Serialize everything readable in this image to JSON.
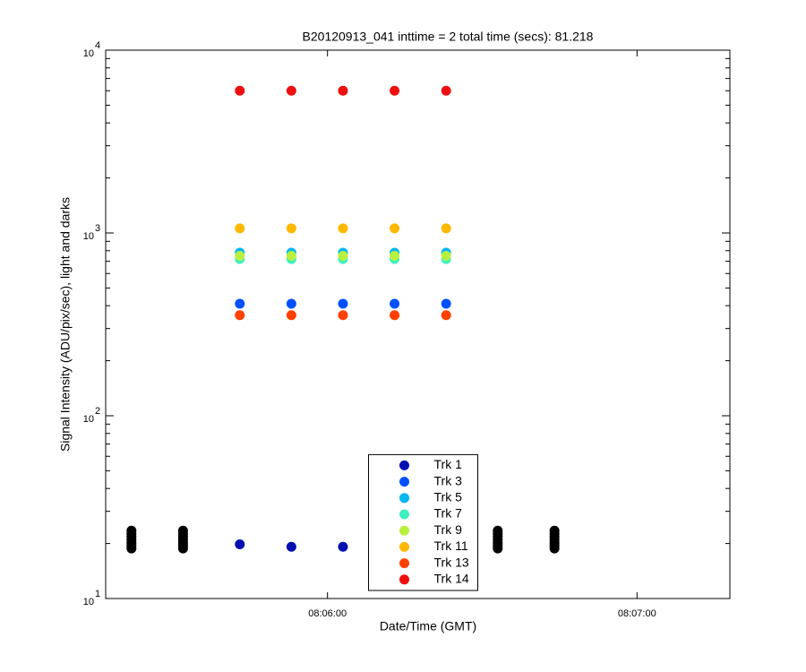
{
  "chart_data": {
    "type": "scatter",
    "title": "B20120913_041 inttime = 2 total time (secs): 81.218",
    "x_label": "Date/Time (GMT)",
    "y_label": "Signal Intensity (ADU/pix/sec), light and darks",
    "y_log": true,
    "xlim": [
      "08:05:17",
      "08:07:18"
    ],
    "xticks": [
      "08:06:00",
      "08:07:00"
    ],
    "ylim": [
      10,
      10000
    ],
    "yticks": [
      {
        "value": 10,
        "label": "10",
        "exponent": "1"
      },
      {
        "value": 100,
        "label": "10",
        "exponent": "2"
      },
      {
        "value": 1000,
        "label": "10",
        "exponent": "3"
      },
      {
        "value": 10000,
        "label": "10",
        "exponent": "4"
      }
    ],
    "minor_yticks": [
      20,
      30,
      40,
      50,
      60,
      70,
      80,
      90,
      200,
      300,
      400,
      500,
      600,
      700,
      800,
      900,
      2000,
      3000,
      4000,
      5000,
      6000,
      7000,
      8000,
      9000
    ],
    "legend": "south",
    "series": [
      {
        "color": "#000000",
        "legend": false,
        "x": [
          "08:05:22",
          "08:05:22",
          "08:05:22",
          "08:05:22",
          "08:05:22",
          "08:05:22",
          "08:05:22",
          "08:05:32",
          "08:05:32",
          "08:05:32",
          "08:05:32",
          "08:05:32",
          "08:05:32",
          "08:05:32",
          "08:06:33",
          "08:06:33",
          "08:06:33",
          "08:06:33",
          "08:06:33",
          "08:06:33",
          "08:06:33",
          "08:06:44",
          "08:06:44",
          "08:06:44",
          "08:06:44",
          "08:06:44",
          "08:06:44",
          "08:06:44"
        ],
        "values": [
          18.8,
          19.5,
          20.2,
          21,
          21.8,
          22.6,
          23.5,
          18.8,
          19.5,
          20.2,
          21,
          21.8,
          22.6,
          23.5,
          18.8,
          19.5,
          20.2,
          21,
          21.8,
          22.6,
          23.5,
          18.8,
          19.5,
          20.2,
          21,
          21.8,
          22.6,
          23.5
        ]
      },
      {
        "name": "Trk 1",
        "color": "#0010b0",
        "x": [
          "08:05:43",
          "08:05:53",
          "08:06:03"
        ],
        "values": [
          19.8,
          19.2,
          19.2
        ]
      },
      {
        "name": "Trk 3",
        "color": "#0050ff",
        "x": [
          "08:05:43",
          "08:05:53",
          "08:06:03",
          "08:06:13",
          "08:06:23"
        ],
        "values": [
          410,
          410,
          410,
          410,
          410
        ]
      },
      {
        "name": "Trk 5",
        "color": "#00b8f0",
        "x": [
          "08:05:43",
          "08:05:53",
          "08:06:03",
          "08:06:13",
          "08:06:23"
        ],
        "values": [
          780,
          780,
          780,
          780,
          780
        ]
      },
      {
        "name": "Trk 7",
        "color": "#40f0c0",
        "x": [
          "08:05:43",
          "08:05:53",
          "08:06:03",
          "08:06:13",
          "08:06:23"
        ],
        "values": [
          720,
          720,
          720,
          720,
          720
        ]
      },
      {
        "name": "Trk 9",
        "color": "#b8f040",
        "x": [
          "08:05:43",
          "08:05:53",
          "08:06:03",
          "08:06:13",
          "08:06:23"
        ],
        "values": [
          750,
          750,
          750,
          750,
          750
        ]
      },
      {
        "name": "Trk 11",
        "color": "#ffb800",
        "x": [
          "08:05:43",
          "08:05:53",
          "08:06:03",
          "08:06:13",
          "08:06:23"
        ],
        "values": [
          1060,
          1060,
          1060,
          1060,
          1060
        ]
      },
      {
        "name": "Trk 13",
        "color": "#ff4000",
        "x": [
          "08:05:43",
          "08:05:53",
          "08:06:03",
          "08:06:13",
          "08:06:23"
        ],
        "values": [
          355,
          355,
          355,
          355,
          355
        ]
      },
      {
        "name": "Trk 14",
        "color": "#ee1010",
        "x": [
          "08:05:43",
          "08:05:53",
          "08:06:03",
          "08:06:13",
          "08:06:23"
        ],
        "values": [
          6000,
          6000,
          6000,
          6000,
          6000
        ]
      }
    ]
  }
}
